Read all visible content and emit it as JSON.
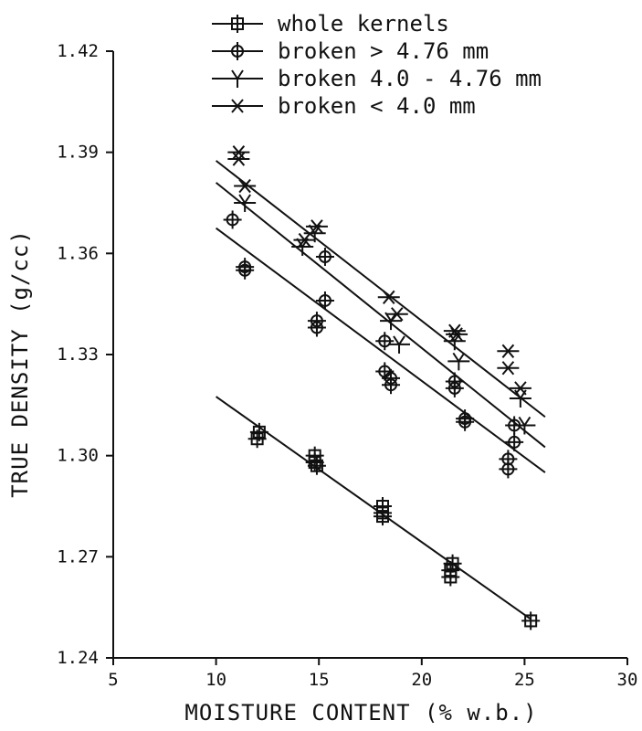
{
  "chart_data": {
    "type": "scatter",
    "title": "",
    "xlabel": "MOISTURE CONTENT (% w.b.)",
    "ylabel": "TRUE DENSITY (g/cc)",
    "xlim": [
      5,
      30
    ],
    "ylim": [
      1.24,
      1.42
    ],
    "xticks": [
      "5",
      "10",
      "15",
      "20",
      "25",
      "30"
    ],
    "yticks": [
      "1.24",
      "1.27",
      "1.30",
      "1.33",
      "1.36",
      "1.39",
      "1.42"
    ],
    "legend_position": "top-center",
    "series": [
      {
        "name": "whole kernels",
        "marker": "square",
        "points": [
          [
            12.1,
            1.307
          ],
          [
            12.0,
            1.305
          ],
          [
            14.8,
            1.3
          ],
          [
            14.8,
            1.298
          ],
          [
            14.9,
            1.297
          ],
          [
            18.1,
            1.285
          ],
          [
            18.1,
            1.283
          ],
          [
            18.1,
            1.282
          ],
          [
            21.5,
            1.268
          ],
          [
            21.4,
            1.266
          ],
          [
            21.4,
            1.264
          ],
          [
            25.3,
            1.251
          ]
        ],
        "fit": [
          [
            10.0,
            1.3175
          ],
          [
            25.3,
            1.2515
          ]
        ]
      },
      {
        "name": "broken > 4.76 mm",
        "marker": "circle",
        "points": [
          [
            10.8,
            1.37
          ],
          [
            11.4,
            1.356
          ],
          [
            11.4,
            1.355
          ],
          [
            15.3,
            1.359
          ],
          [
            15.3,
            1.346
          ],
          [
            14.9,
            1.34
          ],
          [
            14.9,
            1.338
          ],
          [
            18.2,
            1.334
          ],
          [
            18.2,
            1.325
          ],
          [
            18.5,
            1.323
          ],
          [
            18.5,
            1.321
          ],
          [
            21.6,
            1.322
          ],
          [
            21.6,
            1.32
          ],
          [
            22.1,
            1.311
          ],
          [
            22.1,
            1.31
          ],
          [
            24.2,
            1.299
          ],
          [
            24.2,
            1.296
          ],
          [
            24.5,
            1.304
          ],
          [
            24.5,
            1.309
          ]
        ],
        "fit": [
          [
            10.0,
            1.3675
          ],
          [
            26.0,
            1.295
          ]
        ]
      },
      {
        "name": "broken 4.0 - 4.76 mm",
        "marker": "tri",
        "points": [
          [
            11.4,
            1.375
          ],
          [
            14.2,
            1.362
          ],
          [
            14.8,
            1.366
          ],
          [
            18.5,
            1.34
          ],
          [
            18.9,
            1.333
          ],
          [
            21.6,
            1.334
          ],
          [
            21.8,
            1.328
          ],
          [
            24.8,
            1.317
          ],
          [
            25.0,
            1.309
          ]
        ],
        "fit": [
          [
            10.0,
            1.381
          ],
          [
            26.0,
            1.3025
          ]
        ]
      },
      {
        "name": "broken < 4.0 mm",
        "marker": "x",
        "points": [
          [
            11.1,
            1.39
          ],
          [
            11.1,
            1.388
          ],
          [
            11.4,
            1.38
          ],
          [
            14.3,
            1.364
          ],
          [
            14.9,
            1.368
          ],
          [
            18.4,
            1.347
          ],
          [
            18.8,
            1.342
          ],
          [
            21.6,
            1.337
          ],
          [
            21.7,
            1.336
          ],
          [
            24.2,
            1.331
          ],
          [
            24.2,
            1.326
          ],
          [
            24.8,
            1.32
          ]
        ],
        "fit": [
          [
            10.0,
            1.3875
          ],
          [
            26.0,
            1.3115
          ]
        ]
      }
    ]
  }
}
